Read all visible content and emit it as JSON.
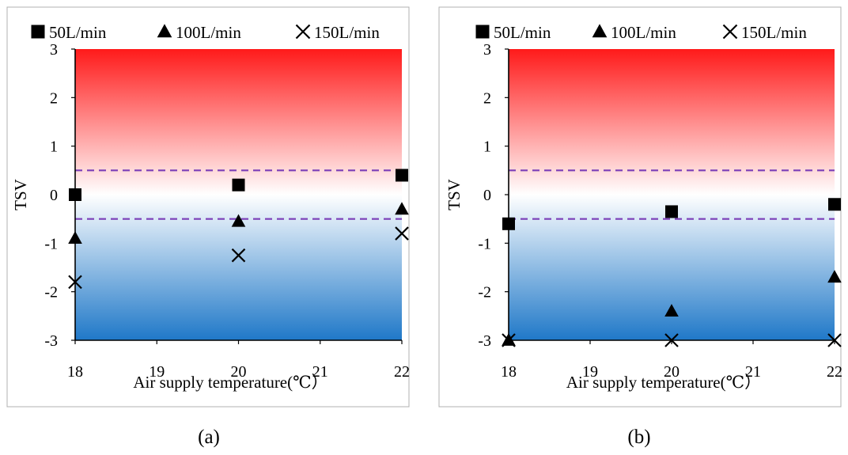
{
  "chart_data": [
    {
      "type": "scatter",
      "caption": "(a)",
      "ylabel": "TSV",
      "xlabel": "Air supply temperature(℃）",
      "xlim": [
        18,
        22
      ],
      "ylim": [
        -3,
        3
      ],
      "xticks": [
        18,
        19,
        20,
        21,
        22
      ],
      "yticks": [
        3,
        2,
        1,
        0,
        -1,
        -2,
        -3
      ],
      "background_gradient": {
        "top": "#ff1a1a",
        "middle": "#ffffff",
        "bottom": "#1f78c8"
      },
      "reference_lines": [
        {
          "y": 0.5,
          "style": "dashed",
          "color": "#7b3fb8"
        },
        {
          "y": -0.5,
          "style": "dashed",
          "color": "#7b3fb8"
        }
      ],
      "legend": "top",
      "series": [
        {
          "name": "50L/min",
          "marker": "square",
          "x": [
            18,
            20,
            22
          ],
          "y": [
            0.0,
            0.2,
            0.4
          ]
        },
        {
          "name": "100L/min",
          "marker": "triangle",
          "x": [
            18,
            20,
            22
          ],
          "y": [
            -0.9,
            -0.55,
            -0.3
          ]
        },
        {
          "name": "150L/min",
          "marker": "x",
          "x": [
            18,
            20,
            22
          ],
          "y": [
            -1.8,
            -1.25,
            -0.8
          ]
        }
      ]
    },
    {
      "type": "scatter",
      "caption": "(b)",
      "ylabel": "TSV",
      "xlabel": "Air supply temperature(℃）",
      "xlim": [
        18,
        22
      ],
      "ylim": [
        -3,
        3
      ],
      "xticks": [
        18,
        19,
        20,
        21,
        22
      ],
      "yticks": [
        3,
        2,
        1,
        0,
        -1,
        -2,
        -3
      ],
      "background_gradient": {
        "top": "#ff1a1a",
        "middle": "#ffffff",
        "bottom": "#1f78c8"
      },
      "reference_lines": [
        {
          "y": 0.5,
          "style": "dashed",
          "color": "#7b3fb8"
        },
        {
          "y": -0.5,
          "style": "dashed",
          "color": "#7b3fb8"
        }
      ],
      "legend": "top",
      "series": [
        {
          "name": "50L/min",
          "marker": "square",
          "x": [
            18,
            20,
            22
          ],
          "y": [
            -0.6,
            -0.35,
            -0.2
          ]
        },
        {
          "name": "100L/min",
          "marker": "triangle",
          "x": [
            18,
            20,
            22
          ],
          "y": [
            -3.0,
            -2.4,
            -1.7
          ]
        },
        {
          "name": "150L/min",
          "marker": "x",
          "x": [
            18,
            20,
            22
          ],
          "y": [
            -3.0,
            -3.0,
            -3.0
          ]
        }
      ]
    }
  ]
}
